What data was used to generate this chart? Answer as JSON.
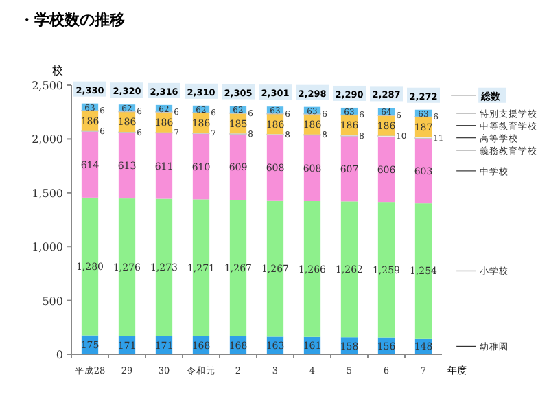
{
  "chart_data": {
    "type": "bar",
    "stacked": true,
    "title": "・学校数の推移",
    "xlabel": "年度",
    "ylabel": "校",
    "categories": [
      "平成28",
      "29",
      "30",
      "令和元",
      "2",
      "3",
      "4",
      "5",
      "6",
      "7"
    ],
    "series": [
      {
        "name": "幼稚園",
        "color": "#2f9fe8",
        "values": [
          175,
          171,
          171,
          168,
          168,
          163,
          161,
          158,
          156,
          148
        ]
      },
      {
        "name": "小学校",
        "color": "#8ef08c",
        "values": [
          1280,
          1276,
          1273,
          1271,
          1267,
          1267,
          1266,
          1262,
          1259,
          1254
        ],
        "value_labels": [
          "1,280",
          "1,276",
          "1,273",
          "1,271",
          "1,267",
          "1,267",
          "1,266",
          "1,262",
          "1,259",
          "1,254"
        ]
      },
      {
        "name": "中学校",
        "color": "#f78fd9",
        "values": [
          614,
          613,
          611,
          610,
          609,
          608,
          608,
          607,
          606,
          603
        ]
      },
      {
        "name": "義務教育学校",
        "color": "#ffffff",
        "values": [
          6,
          6,
          7,
          7,
          8,
          8,
          8,
          8,
          10,
          11
        ]
      },
      {
        "name": "高等学校",
        "color": "#f9c84c",
        "values": [
          186,
          186,
          186,
          186,
          185,
          186,
          186,
          186,
          186,
          187
        ]
      },
      {
        "name": "中等教育学校",
        "color": "#ffffff",
        "values": [
          6,
          6,
          6,
          6,
          6,
          6,
          6,
          6,
          6,
          6
        ]
      },
      {
        "name": "特別支援学校",
        "color": "#5cbdee",
        "values": [
          63,
          62,
          62,
          62,
          62,
          63,
          63,
          63,
          64,
          63
        ]
      }
    ],
    "data_labels": true,
    "totals": [
      "2,330",
      "2,320",
      "2,316",
      "2,310",
      "2,305",
      "2,301",
      "2,298",
      "2,290",
      "2,287",
      "2,272"
    ],
    "annotations": [
      "総数"
    ],
    "ylim": [
      0,
      2500
    ],
    "yticks": [
      0,
      500,
      {
        "value": 1000,
        "label": "1,000"
      },
      {
        "value": 1500,
        "label": "1,500"
      },
      {
        "value": 2000,
        "label": "2,000"
      },
      {
        "value": 2500,
        "label": "2,500"
      }
    ],
    "grid": false
  }
}
